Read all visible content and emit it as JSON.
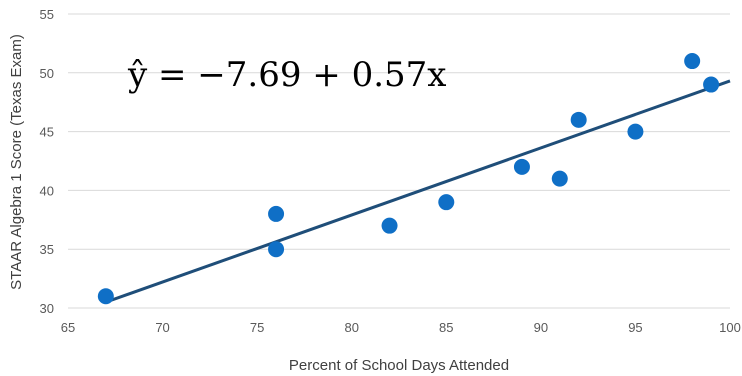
{
  "chart_data": {
    "type": "scatter",
    "xlabel": "Percent of School Days Attended",
    "ylabel": "STAAR Algebra 1 Score (Texas Exam)",
    "xlim": [
      65,
      100
    ],
    "ylim": [
      30,
      55
    ],
    "x_ticks": [
      65,
      70,
      75,
      80,
      85,
      90,
      95,
      100
    ],
    "y_ticks": [
      30,
      35,
      40,
      45,
      50,
      55
    ],
    "grid": "horizontal",
    "points": [
      {
        "x": 67,
        "y": 31
      },
      {
        "x": 76,
        "y": 38
      },
      {
        "x": 76,
        "y": 35
      },
      {
        "x": 82,
        "y": 37
      },
      {
        "x": 85,
        "y": 39
      },
      {
        "x": 89,
        "y": 42
      },
      {
        "x": 91,
        "y": 41
      },
      {
        "x": 92,
        "y": 46
      },
      {
        "x": 95,
        "y": 45
      },
      {
        "x": 98,
        "y": 51
      },
      {
        "x": 99,
        "y": 49
      }
    ],
    "trendline": {
      "intercept": -7.69,
      "slope": 0.57,
      "x_range": [
        67,
        100
      ]
    },
    "annotation": "ŷ = −7.69 + 0.57x",
    "colors": {
      "points": "#0f6fc6",
      "trendline": "#1f4e79",
      "grid": "#d9d9d9"
    }
  }
}
